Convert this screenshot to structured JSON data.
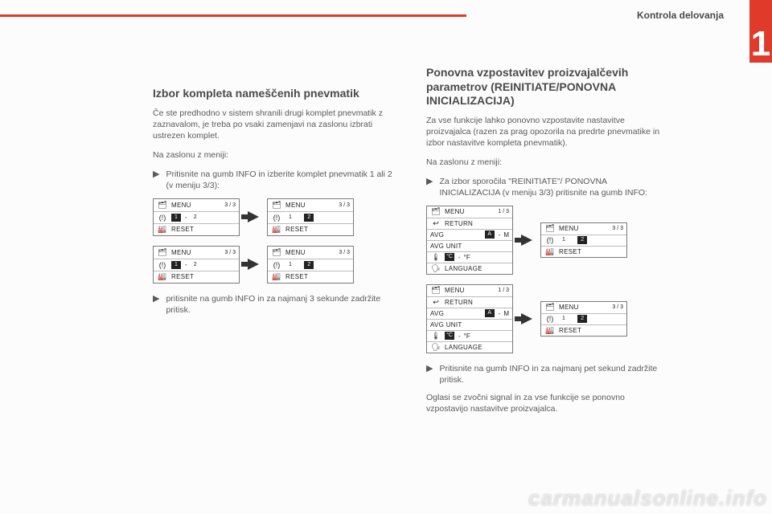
{
  "header": {
    "section": "Kontrola delovanja",
    "chapter": "1"
  },
  "left": {
    "title": "Izbor kompleta nameščenih pnevmatik",
    "intro": "Če ste predhodno v sistem shranili drugi komplet pnevmatik z zaznavalom, je treba po vsaki zamenjavi na zaslonu izbrati ustrezen komplet.",
    "lead": "Na zaslonu z meniji:",
    "bullet1": "Pritisnite na gumb INFO in izberite komplet pnevmatik 1 ali 2 (v meniju 3/3):",
    "bullet2": "pritisnite na gumb INFO in za najmanj 3 sekunde zadržite pritisk."
  },
  "right": {
    "title": "Ponovna vzpostavitev proizvajalčevih parametrov (REINITIATE/PONOVNA INICIALIZACIJA)",
    "intro": "Za vse funkcije lahko ponovno vzpostavite nastavitve proizvajalca (razen za prag opozorila na predrte pnevmatike in izbor nastavitve kompleta pnevmatik).",
    "lead": "Na zaslonu z meniji:",
    "bullet1": "Za izbor sporočila \"REINITIATE\"/ PONOVNA INICIALIZACIJA (v meniju 3/3) pritisnite na gumb INFO:",
    "bullet2": "Pritisnite na gumb INFO in za najmanj pet sekund zadržite pritisk.",
    "tail": "Oglasi se zvočni signal in za vse funkcije se ponovno vzpostavijo nastavitve proizvajalca."
  },
  "menus": {
    "menu": "MENU",
    "reset": "RESET",
    "return": "RETURN",
    "avg": "AVG",
    "avgunit": "AVG UNIT",
    "language": "LANGUAGE",
    "f13": "1 / 3",
    "f33": "3 / 3",
    "one": "1",
    "two": "2",
    "dash": "-",
    "A": "A",
    "M": "M",
    "degC": "°C",
    "degF": "°F"
  },
  "watermark": "carmanualsonline.info"
}
